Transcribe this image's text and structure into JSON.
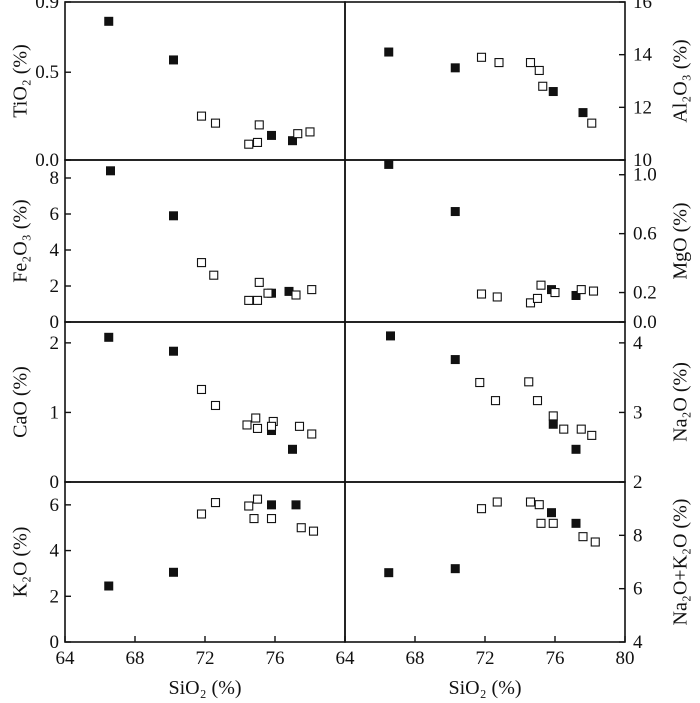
{
  "chart_data": [
    {
      "type": "scatter",
      "position": "top-left",
      "ylabel": "TiO₂ (%)",
      "ylim": [
        0,
        0.9
      ],
      "yticks": [
        "0.0",
        "0.5",
        "0.9"
      ],
      "ytick_values": [
        0,
        0.5,
        0.9
      ],
      "xlim": [
        64,
        80
      ],
      "series": [
        {
          "marker": "filled-square",
          "points": [
            [
              66.5,
              0.79
            ],
            [
              70.2,
              0.57
            ],
            [
              75.8,
              0.14
            ],
            [
              77.0,
              0.11
            ]
          ]
        },
        {
          "marker": "open-square",
          "points": [
            [
              71.8,
              0.25
            ],
            [
              72.6,
              0.21
            ],
            [
              74.5,
              0.09
            ],
            [
              75.0,
              0.1
            ],
            [
              75.1,
              0.2
            ],
            [
              77.3,
              0.15
            ],
            [
              78.0,
              0.16
            ]
          ]
        }
      ]
    },
    {
      "type": "scatter",
      "position": "top-right",
      "ylabel": "Al₂O₃ (%)",
      "ylim": [
        10,
        16
      ],
      "yticks": [
        "10",
        "12",
        "14",
        "16"
      ],
      "ytick_values": [
        10,
        12,
        14,
        16
      ],
      "xlim": [
        64,
        80
      ],
      "series": [
        {
          "marker": "filled-square",
          "points": [
            [
              66.5,
              14.1
            ],
            [
              70.3,
              13.5
            ],
            [
              75.9,
              12.6
            ],
            [
              77.6,
              11.8
            ]
          ]
        },
        {
          "marker": "open-square",
          "points": [
            [
              71.8,
              13.9
            ],
            [
              72.8,
              13.7
            ],
            [
              74.6,
              13.7
            ],
            [
              75.1,
              13.4
            ],
            [
              75.3,
              12.8
            ],
            [
              78.1,
              11.4
            ]
          ]
        }
      ]
    },
    {
      "type": "scatter",
      "position": "mid-upper-left",
      "ylabel": "Fe₂O₃ (%)",
      "ylim": [
        0,
        9
      ],
      "yticks": [
        "0",
        "2",
        "4",
        "6",
        "8"
      ],
      "ytick_values": [
        0,
        2,
        4,
        6,
        8
      ],
      "xlim": [
        64,
        80
      ],
      "series": [
        {
          "marker": "filled-square",
          "points": [
            [
              66.6,
              8.4
            ],
            [
              70.2,
              5.9
            ],
            [
              75.8,
              1.6
            ],
            [
              76.8,
              1.7
            ]
          ]
        },
        {
          "marker": "open-square",
          "points": [
            [
              71.8,
              3.3
            ],
            [
              72.5,
              2.6
            ],
            [
              74.5,
              1.2
            ],
            [
              75.0,
              1.2
            ],
            [
              75.1,
              2.2
            ],
            [
              75.6,
              1.6
            ],
            [
              77.2,
              1.5
            ],
            [
              78.1,
              1.8
            ]
          ]
        }
      ]
    },
    {
      "type": "scatter",
      "position": "mid-upper-right",
      "ylabel": "MgO (%)",
      "ylim": [
        0,
        1.1
      ],
      "yticks": [
        "0.0",
        "0.2",
        "0.6",
        "1.0"
      ],
      "ytick_values": [
        0,
        0.2,
        0.6,
        1.0
      ],
      "xlim": [
        64,
        80
      ],
      "series": [
        {
          "marker": "filled-square",
          "points": [
            [
              66.5,
              1.07
            ],
            [
              70.3,
              0.75
            ],
            [
              75.8,
              0.22
            ],
            [
              77.2,
              0.18
            ]
          ]
        },
        {
          "marker": "open-square",
          "points": [
            [
              71.8,
              0.19
            ],
            [
              72.7,
              0.17
            ],
            [
              74.6,
              0.13
            ],
            [
              75.0,
              0.16
            ],
            [
              75.2,
              0.25
            ],
            [
              76.0,
              0.2
            ],
            [
              77.5,
              0.22
            ],
            [
              78.2,
              0.21
            ]
          ]
        }
      ]
    },
    {
      "type": "scatter",
      "position": "mid-lower-left",
      "ylabel": "CaO (%)",
      "ylim": [
        0,
        2.3
      ],
      "yticks": [
        "0",
        "1",
        "2"
      ],
      "ytick_values": [
        0,
        1,
        2
      ],
      "xlim": [
        64,
        80
      ],
      "series": [
        {
          "marker": "filled-square",
          "points": [
            [
              66.5,
              2.08
            ],
            [
              70.2,
              1.88
            ],
            [
              75.8,
              0.74
            ],
            [
              77.0,
              0.47
            ]
          ]
        },
        {
          "marker": "open-square",
          "points": [
            [
              71.8,
              1.33
            ],
            [
              72.6,
              1.1
            ],
            [
              74.4,
              0.82
            ],
            [
              74.9,
              0.92
            ],
            [
              75.0,
              0.77
            ],
            [
              75.9,
              0.87
            ],
            [
              75.8,
              0.8
            ],
            [
              77.4,
              0.8
            ],
            [
              78.1,
              0.69
            ]
          ]
        }
      ]
    },
    {
      "type": "scatter",
      "position": "mid-lower-right",
      "ylabel": "Na₂O (%)",
      "ylim": [
        2,
        4.3
      ],
      "yticks": [
        "2",
        "3",
        "4"
      ],
      "ytick_values": [
        2,
        3,
        4
      ],
      "xlim": [
        64,
        80
      ],
      "series": [
        {
          "marker": "filled-square",
          "points": [
            [
              66.6,
              4.1
            ],
            [
              70.3,
              3.76
            ],
            [
              75.9,
              2.83
            ],
            [
              77.2,
              2.47
            ]
          ]
        },
        {
          "marker": "open-square",
          "points": [
            [
              71.7,
              3.43
            ],
            [
              72.6,
              3.17
            ],
            [
              74.5,
              3.44
            ],
            [
              75.0,
              3.17
            ],
            [
              75.9,
              2.95
            ],
            [
              76.5,
              2.76
            ],
            [
              77.5,
              2.76
            ],
            [
              78.1,
              2.67
            ]
          ]
        }
      ]
    },
    {
      "type": "scatter",
      "position": "bottom-left",
      "ylabel": "K₂O (%)",
      "xlabel": "SiO₂ (%)",
      "ylim": [
        0,
        7
      ],
      "yticks": [
        "0",
        "2",
        "4",
        "6"
      ],
      "ytick_values": [
        0,
        2,
        4,
        6
      ],
      "xlim": [
        64,
        80
      ],
      "xticks": [
        "64",
        "68",
        "72",
        "76"
      ],
      "xtick_values": [
        64,
        68,
        72,
        76
      ],
      "series": [
        {
          "marker": "filled-square",
          "points": [
            [
              66.5,
              2.45
            ],
            [
              70.2,
              3.05
            ],
            [
              75.8,
              6.0
            ],
            [
              77.2,
              6.0
            ]
          ]
        },
        {
          "marker": "open-square",
          "points": [
            [
              71.8,
              5.6
            ],
            [
              72.6,
              6.1
            ],
            [
              74.5,
              5.95
            ],
            [
              74.8,
              5.4
            ],
            [
              75.0,
              6.25
            ],
            [
              75.8,
              5.4
            ],
            [
              77.5,
              5.0
            ],
            [
              78.2,
              4.85
            ]
          ]
        }
      ]
    },
    {
      "type": "scatter",
      "position": "bottom-right",
      "ylabel": "Na₂O+K₂O (%)",
      "xlabel": "SiO₂ (%)",
      "ylim": [
        4,
        10
      ],
      "yticks": [
        "4",
        "6",
        "8"
      ],
      "ytick_values": [
        4,
        6,
        8
      ],
      "xlim": [
        64,
        80
      ],
      "xticks": [
        "64",
        "68",
        "72",
        "76",
        "80"
      ],
      "xtick_values": [
        64,
        68,
        72,
        76,
        80
      ],
      "series": [
        {
          "marker": "filled-square",
          "points": [
            [
              66.5,
              6.6
            ],
            [
              70.3,
              6.75
            ],
            [
              75.8,
              8.85
            ],
            [
              77.2,
              8.45
            ]
          ]
        },
        {
          "marker": "open-square",
          "points": [
            [
              71.8,
              9.0
            ],
            [
              72.7,
              9.25
            ],
            [
              74.6,
              9.25
            ],
            [
              75.1,
              9.15
            ],
            [
              75.2,
              8.45
            ],
            [
              75.9,
              8.45
            ],
            [
              77.6,
              7.95
            ],
            [
              78.3,
              7.75
            ]
          ]
        }
      ]
    }
  ]
}
